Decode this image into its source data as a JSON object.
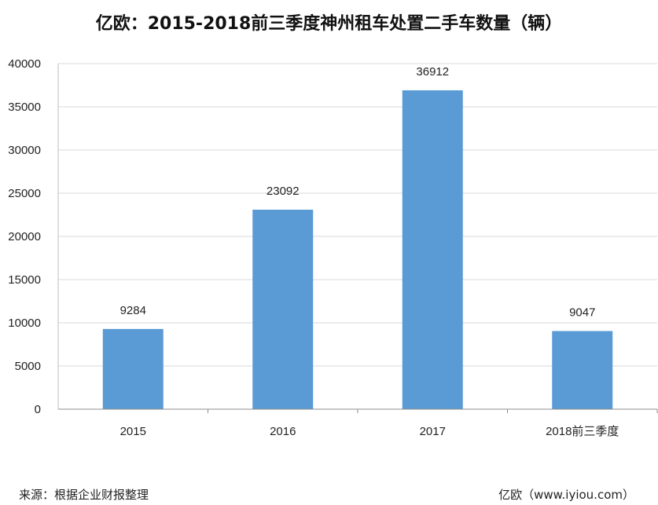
{
  "chart_data": {
    "type": "bar",
    "title": "亿欧：2015-2018前三季度神州租车处置二手车数量（辆）",
    "categories": [
      "2015",
      "2016",
      "2017",
      "2018前三季度"
    ],
    "values": [
      9284,
      23092,
      36912,
      9047
    ],
    "ylim": [
      0,
      40000
    ],
    "yticks": [
      0,
      5000,
      10000,
      15000,
      20000,
      25000,
      30000,
      35000,
      40000
    ],
    "xlabel": "",
    "ylabel": "",
    "grid": true,
    "bar_color": "#5b9bd5",
    "grid_color": "#d9d9d9"
  },
  "footer": {
    "source": "来源：根据企业财报整理",
    "credit": "亿欧（www.iyiou.com）"
  }
}
